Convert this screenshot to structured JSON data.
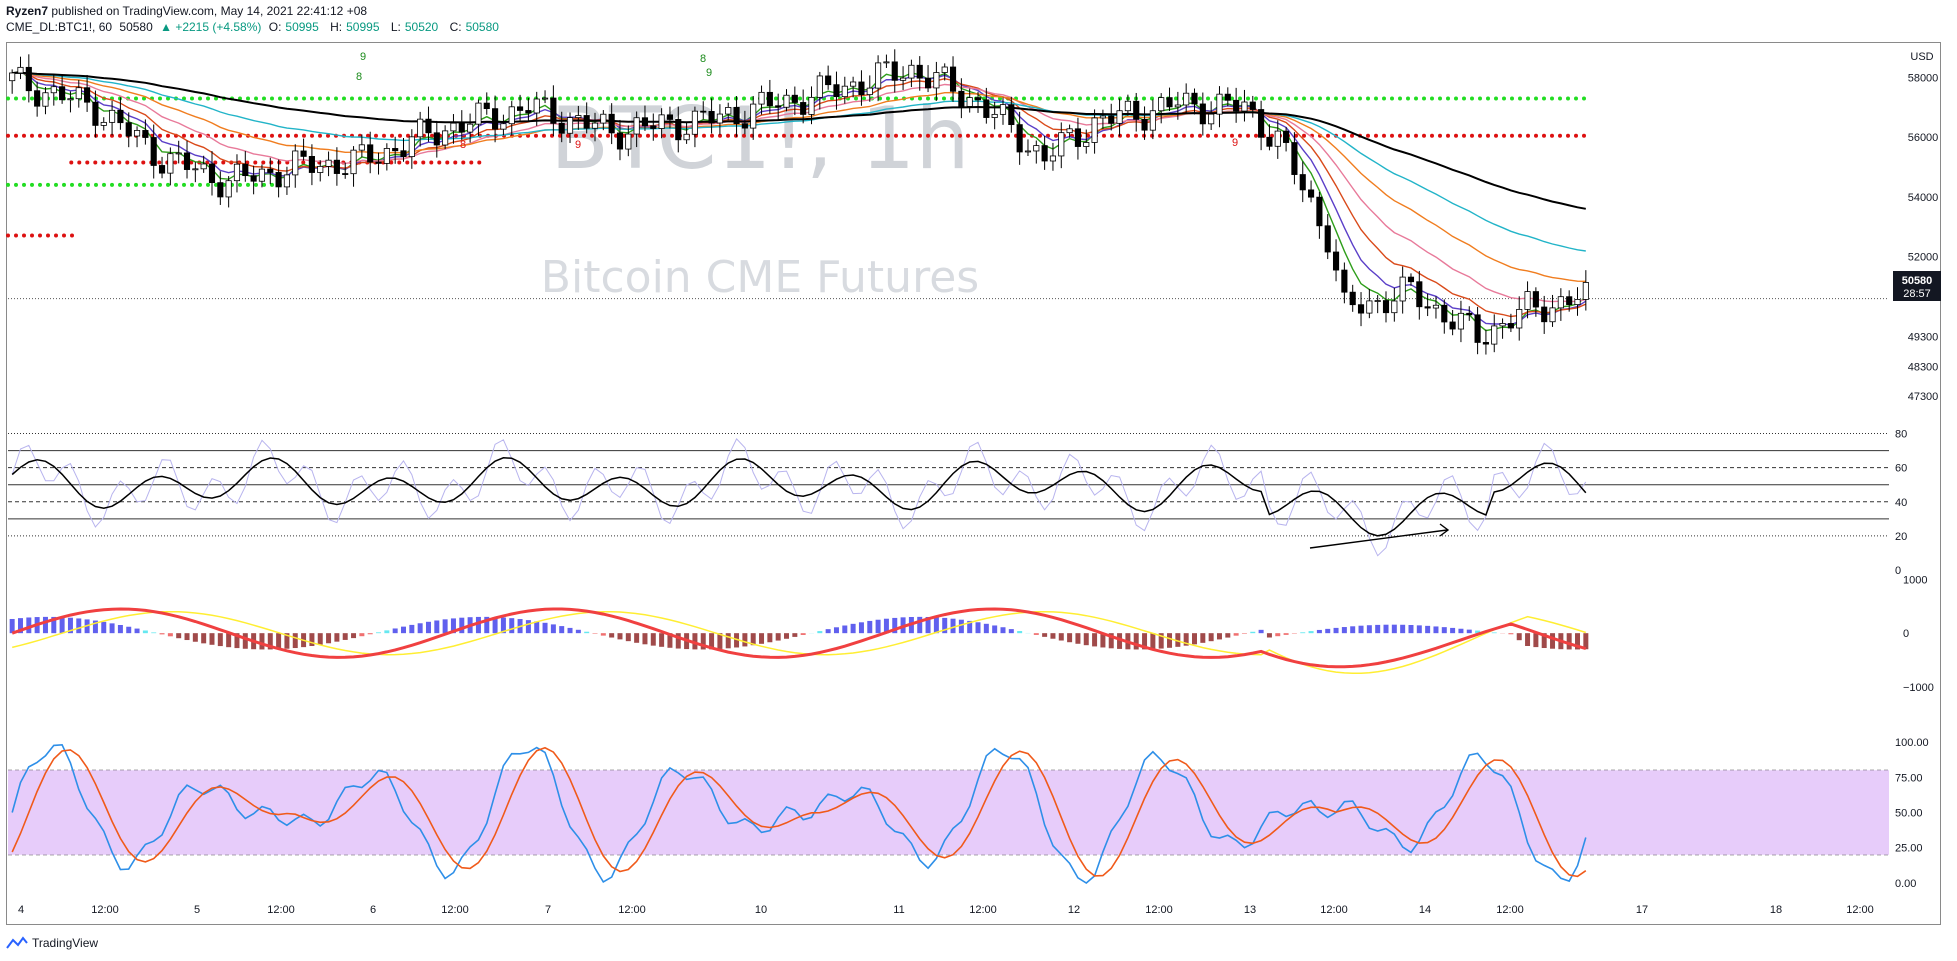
{
  "header": {
    "author": "Ryzen7",
    "published_text": "published on TradingView.com, May 14, 2021 22:41:12 +08",
    "symbol": "CME_DL:BTC1!, 60",
    "last": "50580",
    "change": "▲ +2215 (+4.58%)",
    "o_label": "O:",
    "o_val": "50995",
    "h_label": "H:",
    "h_val": "50995",
    "l_label": "L:",
    "l_val": "50520",
    "c_label": "C:",
    "c_val": "50580"
  },
  "watermark": {
    "line1": "BTC1!, 1h",
    "line2": "Bitcoin CME Futures"
  },
  "currency": "USD",
  "price_label": {
    "price": "50580",
    "countdown": "28:57"
  },
  "footer": {
    "brand": "TradingView"
  },
  "colors": {
    "up": "#089981",
    "down": "#000000",
    "ema_black": "#000000",
    "ema_green": "#2e9e1a",
    "ema_purple": "#5b3fc8",
    "ema_red": "#d94a1a",
    "ema_pink": "#e87a9a",
    "ema_orange": "#f07d1f",
    "ema_cyan": "#22b4c8",
    "dot_green": "#22dd22",
    "dot_red": "#dd1111",
    "stoch_band": "#e7ccfa",
    "stoch_k": "#2e8fe8",
    "stoch_d": "#f05a1a",
    "rsi": "#000000",
    "macd_line": "#f04040",
    "macd_signal": "#ffee33"
  },
  "chart_data": [
    {
      "type": "candlestick",
      "title": "",
      "y_ticks": [
        "58000",
        "56000",
        "54000",
        "52000",
        "49300",
        "48300",
        "47300"
      ],
      "x_ticks": [
        "4",
        "12:00",
        "5",
        "12:00",
        "6",
        "12:00",
        "7",
        "12:00",
        "10",
        "11",
        "12:00",
        "12",
        "12:00",
        "13",
        "12:00",
        "14",
        "12:00",
        "17",
        "18",
        "12:00"
      ],
      "ylim": [
        46500,
        59200
      ],
      "last_price": 50580,
      "markers": [
        {
          "text": "9",
          "color": "green"
        },
        {
          "text": "8",
          "color": "green"
        },
        {
          "text": "8",
          "color": "green"
        },
        {
          "text": "9",
          "color": "green"
        },
        {
          "text": "8",
          "color": "red"
        },
        {
          "text": "9",
          "color": "red"
        },
        {
          "text": "9",
          "color": "red"
        }
      ],
      "dotted_levels": [
        {
          "price": 57300,
          "color": "green"
        },
        {
          "price": 56050,
          "color": "red"
        },
        {
          "price": 54400,
          "color": "green"
        },
        {
          "price": 52700,
          "color": "red"
        },
        {
          "price": 55150,
          "color": "red"
        }
      ]
    },
    {
      "type": "line",
      "title": "",
      "y_ticks": [
        "80",
        "60",
        "40",
        "20",
        "0"
      ],
      "levels": [
        70,
        60,
        50,
        40,
        30
      ],
      "ylim": [
        0,
        85
      ]
    },
    {
      "type": "bar",
      "title": "",
      "y_ticks": [
        "1000",
        "0",
        "−1000"
      ],
      "ylim": [
        -1800,
        1100
      ]
    },
    {
      "type": "line",
      "title": "",
      "y_ticks": [
        "100.00",
        "75.00",
        "50.00",
        "25.00",
        "0.00"
      ],
      "band": [
        20,
        80
      ],
      "ylim": [
        -5,
        105
      ]
    }
  ]
}
